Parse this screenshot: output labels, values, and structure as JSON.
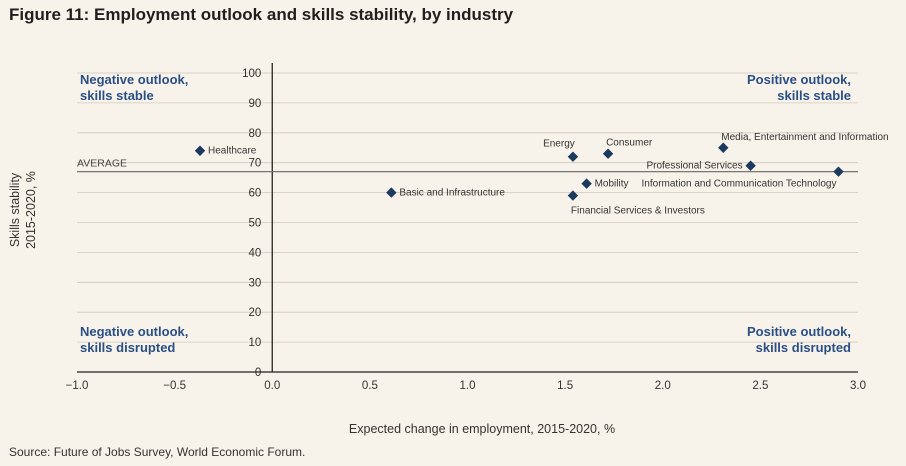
{
  "figure": {
    "title": "Figure 11: Employment outlook and skills stability, by industry",
    "source": "Source: Future of Jobs Survey, World Economic Forum."
  },
  "chart_data": {
    "type": "scatter",
    "title": "Figure 11: Employment outlook and skills stability, by industry",
    "xlabel": "Expected change in employment, 2015-2020, %",
    "ylabel_lines": [
      "Skills stability",
      "2015-2020, %"
    ],
    "xlim": [
      -1.0,
      3.0
    ],
    "ylim": [
      0,
      100
    ],
    "xticks": [
      "−1.0",
      "−0.5",
      "0.0",
      "0.5",
      "1.0",
      "1.5",
      "2.0",
      "2.5",
      "3.0"
    ],
    "xtick_values": [
      -1.0,
      -0.5,
      0.0,
      0.5,
      1.0,
      1.5,
      2.0,
      2.5,
      3.0
    ],
    "yticks": [
      "0",
      "10",
      "20",
      "30",
      "40",
      "50",
      "60",
      "70",
      "80",
      "90",
      "100"
    ],
    "ytick_values": [
      0,
      10,
      20,
      30,
      40,
      50,
      60,
      70,
      80,
      90,
      100
    ],
    "grid": "horizontal",
    "average": {
      "label": "AVERAGE",
      "value": 67
    },
    "quadrants": [
      {
        "id": "top-left",
        "lines": [
          "Negative outlook,",
          "skills stable"
        ]
      },
      {
        "id": "top-right",
        "lines": [
          "Positive outlook,",
          "skills stable"
        ]
      },
      {
        "id": "bottom-left",
        "lines": [
          "Negative outlook,",
          "skills disrupted"
        ]
      },
      {
        "id": "bottom-right",
        "lines": [
          "Positive outlook,",
          "skills disrupted"
        ]
      }
    ],
    "points": [
      {
        "name": "Healthcare",
        "x": -0.37,
        "y": 74,
        "label_side": "right"
      },
      {
        "name": "Basic and Infrastructure",
        "x": 0.61,
        "y": 60,
        "label_side": "right"
      },
      {
        "name": "Energy",
        "x": 1.54,
        "y": 72,
        "label_side": "above"
      },
      {
        "name": "Consumer",
        "x": 1.72,
        "y": 73,
        "label_side": "above-right"
      },
      {
        "name": "Mobility",
        "x": 1.61,
        "y": 63,
        "label_side": "right"
      },
      {
        "name": "Financial Services & Investors",
        "x": 1.54,
        "y": 59,
        "label_side": "below"
      },
      {
        "name": "Media, Entertainment and Information",
        "x": 2.31,
        "y": 75,
        "label_side": "above-right"
      },
      {
        "name": "Professional Services",
        "x": 2.45,
        "y": 69,
        "label_side": "left"
      },
      {
        "name": "Information and Communication Technology",
        "x": 2.9,
        "y": 67,
        "label_side": "below-left"
      }
    ]
  },
  "colors": {
    "marker": "#1c3a5e",
    "quadrant_text": "#2a4f86",
    "grid": "#cfc8bc",
    "axis": "#222222"
  }
}
